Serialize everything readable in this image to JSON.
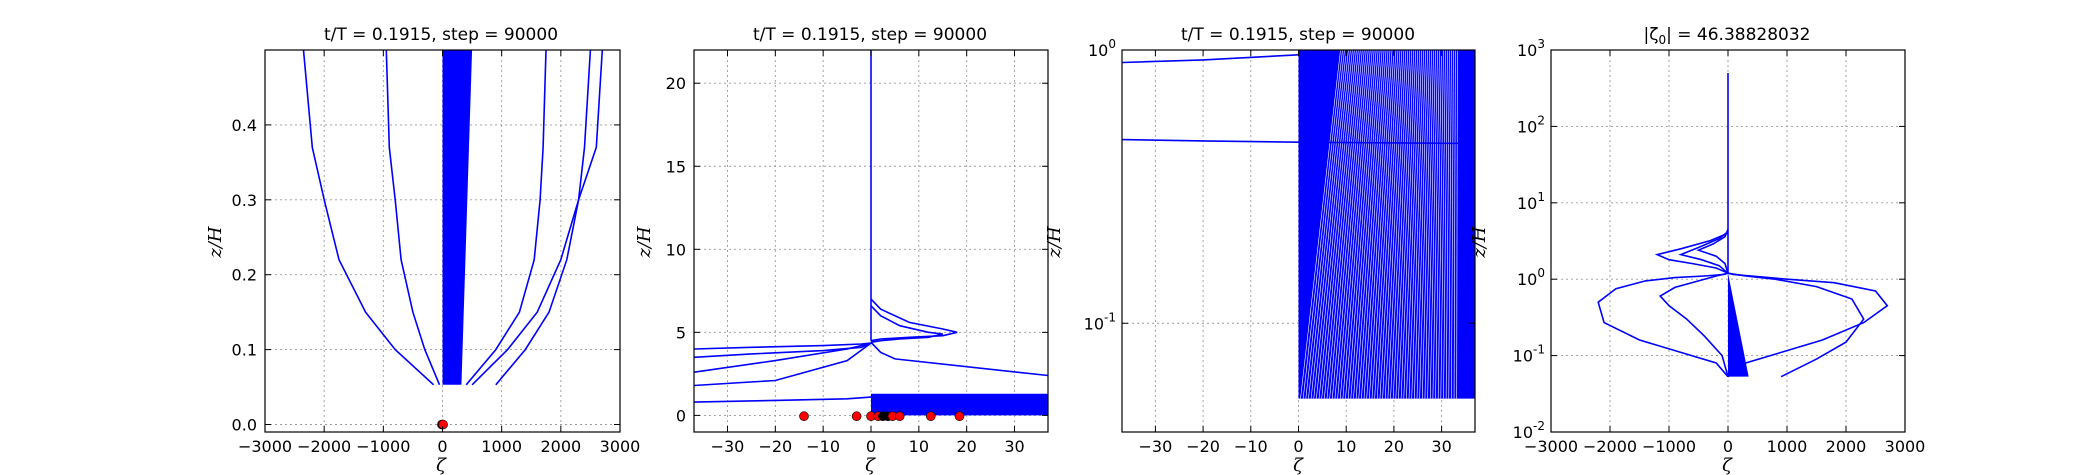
{
  "chart_data": [
    {
      "type": "line",
      "title": "t/T = 0.1915, step = 90000",
      "xlabel": "ζ",
      "ylabel": "z/H",
      "xlim": [
        -3000,
        3000
      ],
      "ylim": [
        -0.01,
        0.5
      ],
      "yscale": "linear",
      "grid": true,
      "xticks": [
        "−3000",
        "−2000",
        "−1000",
        "0",
        "1000",
        "2000",
        "3000"
      ],
      "xtick_values": [
        -3000,
        -2000,
        -1000,
        0,
        1000,
        2000,
        3000
      ],
      "yticks": [
        "0.0",
        "0.1",
        "0.2",
        "0.3",
        "0.4"
      ],
      "ytick_values": [
        0.0,
        0.1,
        0.2,
        0.3,
        0.4
      ],
      "series": [
        {
          "x": [
            -150,
            -800,
            -1300,
            -1750,
            -2000,
            -2200,
            -2350
          ],
          "y": [
            0.053,
            0.1,
            0.15,
            0.22,
            0.3,
            0.37,
            0.5
          ]
        },
        {
          "x": [
            -50,
            -300,
            -500,
            -700,
            -800,
            -900,
            -950
          ],
          "y": [
            0.053,
            0.1,
            0.15,
            0.22,
            0.3,
            0.37,
            0.5
          ]
        },
        {
          "x": [
            900,
            1400,
            1800,
            2100,
            2300,
            2400,
            2500
          ],
          "y": [
            0.053,
            0.1,
            0.15,
            0.22,
            0.3,
            0.37,
            0.5
          ]
        },
        {
          "x": [
            500,
            1100,
            1600,
            2000,
            2300,
            2600,
            2700
          ],
          "y": [
            0.053,
            0.1,
            0.15,
            0.22,
            0.3,
            0.37,
            0.5
          ]
        },
        {
          "x": [
            400,
            900,
            1300,
            1550,
            1650,
            1700,
            1750
          ],
          "y": [
            0.053,
            0.1,
            0.15,
            0.22,
            0.3,
            0.37,
            0.5
          ]
        }
      ],
      "band": {
        "x_left": 0,
        "x_right_bottom": 320,
        "x_right_top": 500,
        "y_bottom": 0.053,
        "y_top": 0.5
      },
      "markers": [
        {
          "x": -10,
          "y": 0.0,
          "color": "#ff0000"
        },
        {
          "x": 0,
          "y": 0.0,
          "color": "#ff0000"
        },
        {
          "x": 10,
          "y": 0.0,
          "color": "#ff0000"
        }
      ]
    },
    {
      "type": "line",
      "title": "t/T = 0.1915, step = 90000",
      "xlabel": "ζ",
      "ylabel": "z/H",
      "xlim": [
        -37,
        37
      ],
      "ylim": [
        -1.0,
        22.0
      ],
      "yscale": "linear",
      "grid": true,
      "xticks": [
        "−30",
        "−20",
        "−10",
        "0",
        "10",
        "20",
        "30"
      ],
      "xtick_values": [
        -30,
        -20,
        -10,
        0,
        10,
        20,
        30
      ],
      "yticks": [
        "0",
        "5",
        "10",
        "15",
        "20"
      ],
      "ytick_values": [
        0,
        5,
        10,
        15,
        20
      ],
      "series": [
        {
          "x": [
            -37,
            -25,
            -10,
            -2,
            0
          ],
          "y": [
            4.0,
            4.1,
            4.2,
            4.3,
            4.35
          ]
        },
        {
          "x": [
            -37,
            -25,
            -10,
            -2,
            0
          ],
          "y": [
            3.5,
            3.7,
            3.9,
            4.1,
            4.35
          ]
        },
        {
          "x": [
            -37,
            -20,
            -5,
            0
          ],
          "y": [
            2.6,
            3.3,
            4.0,
            4.35
          ]
        },
        {
          "x": [
            -37,
            -20,
            -5,
            0
          ],
          "y": [
            1.8,
            2.1,
            3.3,
            4.35
          ]
        },
        {
          "x": [
            -37,
            -20,
            -5,
            0
          ],
          "y": [
            0.8,
            0.9,
            1.0,
            1.1
          ]
        },
        {
          "x": [
            0,
            2,
            8,
            15,
            18,
            15,
            8,
            2,
            0
          ],
          "y": [
            7.0,
            6.4,
            5.6,
            5.2,
            5.0,
            4.8,
            4.7,
            4.6,
            4.5
          ]
        },
        {
          "x": [
            0,
            2,
            6,
            12,
            15,
            12,
            6,
            2,
            0
          ],
          "y": [
            6.6,
            6.0,
            5.4,
            5.0,
            4.9,
            4.7,
            4.6,
            4.5,
            4.4
          ]
        },
        {
          "x": [
            0,
            2,
            5,
            37
          ],
          "y": [
            4.4,
            3.8,
            3.4,
            2.4
          ]
        },
        {
          "x": [
            0,
            0,
            0
          ],
          "y": [
            4.5,
            12,
            22
          ]
        }
      ],
      "band": {
        "x_left": 0,
        "x_right": 37,
        "y_bottom": 0.0,
        "y_top": 1.3
      },
      "markers": [
        {
          "x": -14,
          "y": -0.05,
          "color": "#ff0000"
        },
        {
          "x": -3,
          "y": -0.05,
          "color": "#ff0000"
        },
        {
          "x": 0,
          "y": -0.05,
          "color": "#ff0000"
        },
        {
          "x": 1.5,
          "y": -0.05,
          "color": "#ff0000"
        },
        {
          "x": 2.5,
          "y": -0.05,
          "color": "#000000"
        },
        {
          "x": 3.5,
          "y": -0.05,
          "color": "#000000"
        },
        {
          "x": 4.5,
          "y": -0.05,
          "color": "#ff0000"
        },
        {
          "x": 6,
          "y": -0.05,
          "color": "#ff0000"
        },
        {
          "x": 12.5,
          "y": -0.05,
          "color": "#ff0000"
        },
        {
          "x": 18.5,
          "y": -0.05,
          "color": "#ff0000"
        }
      ]
    },
    {
      "type": "line",
      "title": "t/T = 0.1915, step = 90000",
      "xlabel": "ζ",
      "ylabel": "z/H",
      "xlim": [
        -37,
        37
      ],
      "ylim": [
        0.04,
        1.0
      ],
      "yscale": "log",
      "grid": true,
      "xticks": [
        "−30",
        "−20",
        "−10",
        "0",
        "10",
        "20",
        "30"
      ],
      "xtick_values": [
        -30,
        -20,
        -10,
        0,
        10,
        20,
        30
      ],
      "yticks": [
        "10",
        "10"
      ],
      "ytick_exps": [
        "-1",
        "0"
      ],
      "ytick_values": [
        0.1,
        1.0
      ],
      "series": [
        {
          "x": [
            -37,
            -20,
            0
          ],
          "y": [
            0.9,
            0.92,
            0.96
          ]
        },
        {
          "x": [
            -37,
            -20,
            0,
            37
          ],
          "y": [
            0.47,
            0.465,
            0.46,
            0.455
          ]
        }
      ],
      "band": {
        "x_left": 0,
        "x_right": 37,
        "y_bottom": 0.053,
        "y_top": 1.0
      }
    },
    {
      "type": "line",
      "title": "|ζ",
      "title_subscript": "0",
      "title_suffix": "| = 46.38828032",
      "xlabel": "ζ",
      "ylabel": "z/H",
      "xlim": [
        -3000,
        3000
      ],
      "ylim": [
        0.01,
        1000
      ],
      "yscale": "log",
      "grid": true,
      "xticks": [
        "−3000",
        "−2000",
        "−1000",
        "0",
        "1000",
        "2000",
        "3000"
      ],
      "xtick_values": [
        -3000,
        -2000,
        -1000,
        0,
        1000,
        2000,
        3000
      ],
      "yticks": [
        "10",
        "10",
        "10",
        "10",
        "10",
        "10"
      ],
      "ytick_exps": [
        "-2",
        "-1",
        "0",
        "1",
        "2",
        "3"
      ],
      "ytick_values": [
        0.01,
        0.1,
        1,
        10,
        100,
        1000
      ],
      "series": [
        {
          "x": [
            0,
            0,
            0
          ],
          "y": [
            1.2,
            50,
            500
          ]
        },
        {
          "x": [
            0,
            -200,
            -800,
            -1500,
            -2100,
            -2200,
            -1900,
            -1400,
            -900,
            -400,
            -80,
            0
          ],
          "y": [
            0.053,
            0.08,
            0.11,
            0.16,
            0.27,
            0.5,
            0.75,
            0.95,
            1.05,
            1.1,
            1.15,
            1.2
          ]
        },
        {
          "x": [
            0,
            -100,
            -400,
            -700,
            -1000,
            -1150,
            -900,
            -500,
            -200,
            0
          ],
          "y": [
            0.053,
            0.1,
            0.18,
            0.3,
            0.45,
            0.6,
            0.78,
            0.95,
            1.1,
            1.2
          ]
        },
        {
          "x": [
            0,
            300,
            900,
            1600,
            2300,
            2700,
            2500,
            1800,
            1000,
            400,
            100,
            0
          ],
          "y": [
            0.053,
            0.08,
            0.11,
            0.16,
            0.27,
            0.45,
            0.7,
            0.9,
            1.0,
            1.1,
            1.15,
            1.2
          ]
        },
        {
          "x": [
            900,
            1500,
            2000,
            2300,
            2100,
            1500,
            800,
            300,
            0
          ],
          "y": [
            0.053,
            0.09,
            0.15,
            0.3,
            0.55,
            0.8,
            1.0,
            1.1,
            1.2
          ]
        },
        {
          "x": [
            0,
            -200,
            -600,
            -1000,
            -1200,
            -800,
            -300,
            0
          ],
          "y": [
            1.2,
            1.4,
            1.6,
            1.8,
            2.1,
            2.5,
            3.2,
            4.0
          ]
        },
        {
          "x": [
            0,
            -150,
            -450,
            -800,
            -500,
            -150,
            0
          ],
          "y": [
            1.2,
            1.5,
            1.8,
            2.1,
            2.6,
            3.4,
            4.2
          ]
        },
        {
          "x": [
            0,
            -50,
            -200,
            -500,
            -250,
            -50,
            0
          ],
          "y": [
            1.2,
            1.6,
            2.0,
            2.4,
            2.9,
            3.6,
            4.5
          ]
        }
      ],
      "band": {
        "x_left": 0,
        "x_right_bottom": 350,
        "x_right_top": 0,
        "y_bottom": 0.053,
        "y_top": 1.2
      }
    }
  ]
}
